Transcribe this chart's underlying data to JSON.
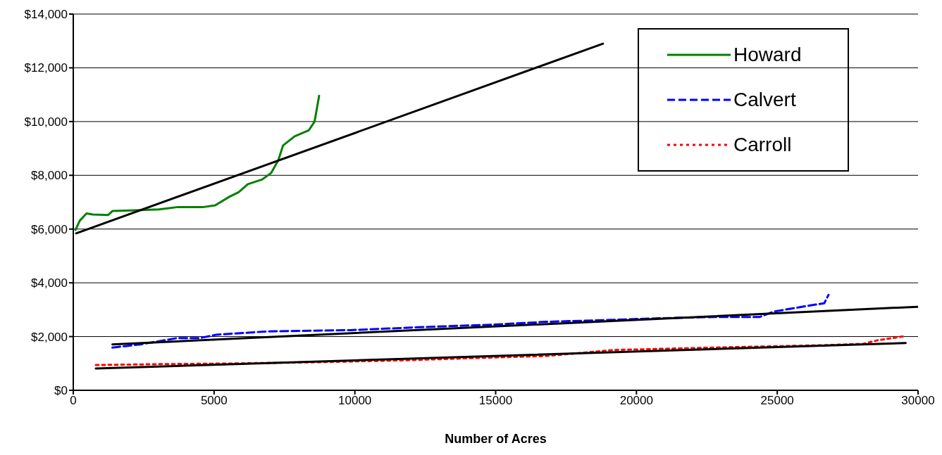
{
  "chart_data": {
    "type": "line",
    "xlabel": "Number of Acres",
    "xlim": [
      0,
      30000
    ],
    "xticks": [
      0,
      5000,
      10000,
      15000,
      20000,
      25000,
      30000
    ],
    "ylim": [
      0,
      14000
    ],
    "yticks": [
      {
        "value": 0,
        "label": "$0"
      },
      {
        "value": 2000,
        "label": "$2,000"
      },
      {
        "value": 4000,
        "label": "$4,000"
      },
      {
        "value": 6000,
        "label": "$6,000"
      },
      {
        "value": 8000,
        "label": "$8,000"
      },
      {
        "value": 10000,
        "label": "$10,000"
      },
      {
        "value": 12000,
        "label": "$12,000"
      },
      {
        "value": 14000,
        "label": "$14,000"
      }
    ],
    "grid": "y",
    "legend": "top right",
    "marker": "none",
    "series": [
      {
        "name": "Howard",
        "color": "#008000",
        "line_style": "solid",
        "x": [
          80,
          230,
          470,
          690,
          1230,
          1390,
          2060,
          3050,
          3720,
          4630,
          5040,
          5540,
          5870,
          6200,
          6700,
          7030,
          7280,
          7450,
          7860,
          8360,
          8570,
          8730
        ],
        "values": [
          5970,
          6310,
          6580,
          6540,
          6520,
          6670,
          6690,
          6730,
          6820,
          6820,
          6880,
          7200,
          7370,
          7670,
          7840,
          8090,
          8560,
          9110,
          9450,
          9670,
          10000,
          10960
        ]
      },
      {
        "name": "Calvert",
        "color": "#0000ff",
        "line_style": "dashed",
        "x": [
          1390,
          2390,
          3680,
          4480,
          5080,
          6870,
          9850,
          12840,
          14830,
          16820,
          18810,
          20800,
          22790,
          24380,
          24880,
          25780,
          26370,
          26670,
          26820
        ],
        "values": [
          1590,
          1710,
          1940,
          1940,
          2070,
          2190,
          2240,
          2370,
          2440,
          2550,
          2610,
          2680,
          2730,
          2730,
          2930,
          3090,
          3190,
          3240,
          3550
        ]
      },
      {
        "name": "Carroll",
        "color": "#ff0000",
        "line_style": "dotted",
        "x": [
          800,
          2890,
          5870,
          8860,
          11840,
          14830,
          16820,
          19210,
          22790,
          26770,
          28070,
          28560,
          29560
        ],
        "values": [
          940,
          970,
          1000,
          1050,
          1120,
          1220,
          1280,
          1500,
          1590,
          1680,
          1730,
          1860,
          2020
        ]
      },
      {
        "type": "line",
        "color": "#000000",
        "line_style": "solid",
        "x": [
          100,
          18810
        ],
        "values": [
          5840,
          12900
        ]
      },
      {
        "type": "line",
        "color": "#000000",
        "line_style": "solid",
        "x": [
          1390,
          30000
        ],
        "values": [
          1710,
          3110
        ]
      },
      {
        "type": "line",
        "color": "#000000",
        "line_style": "solid",
        "x": [
          800,
          29560
        ],
        "values": [
          810,
          1760
        ]
      }
    ]
  }
}
